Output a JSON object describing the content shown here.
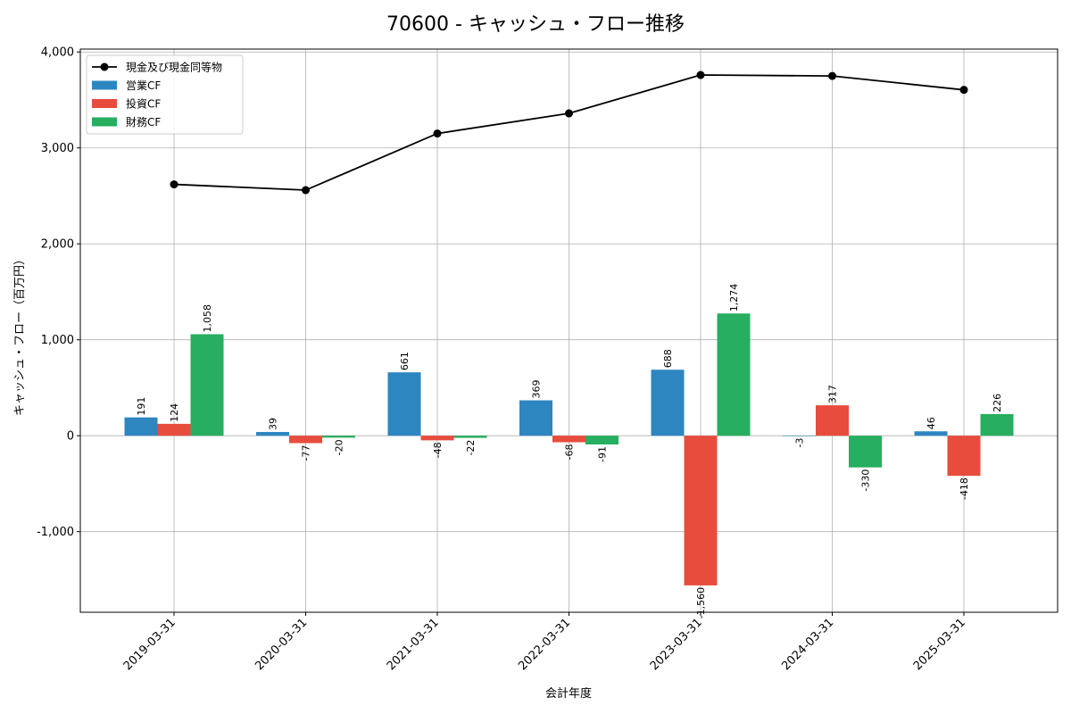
{
  "chart_data": {
    "type": "bar",
    "title": "70600 - キャッシュ・フロー推移",
    "xlabel": "会計年度",
    "ylabel": "キャッシュ・フロー（百万円）",
    "ylim": [
      -1840,
      4030
    ],
    "yticks": [
      -1000,
      0,
      1000,
      2000,
      3000,
      4000
    ],
    "ytick_labels": [
      "-1,000",
      "0",
      "1,000",
      "2,000",
      "3,000",
      "4,000"
    ],
    "grid": true,
    "legend_position": "top-left",
    "categories": [
      "2019-03-31",
      "2020-03-31",
      "2021-03-31",
      "2022-03-31",
      "2023-03-31",
      "2024-03-31",
      "2025-03-31"
    ],
    "series": [
      {
        "name": "営業CF",
        "kind": "bar",
        "color": "#2e86c1",
        "values": [
          191,
          39,
          661,
          369,
          688,
          -3,
          46
        ],
        "labels": [
          "191",
          "39",
          "661",
          "369",
          "688",
          "-3",
          "46"
        ]
      },
      {
        "name": "投資CF",
        "kind": "bar",
        "color": "#e74c3c",
        "values": [
          124,
          -77,
          -48,
          -68,
          -1560,
          317,
          -418
        ],
        "labels": [
          "124",
          "-77",
          "-48",
          "-68",
          "-1,560",
          "317",
          "-418"
        ]
      },
      {
        "name": "財務CF",
        "kind": "bar",
        "color": "#27ae60",
        "values": [
          1058,
          -20,
          -22,
          -91,
          1274,
          -330,
          226
        ],
        "labels": [
          "1,058",
          "-20",
          "-22",
          "-91",
          "1,274",
          "-330",
          "226"
        ]
      }
    ],
    "line_series": {
      "name": "現金及び現金同等物",
      "kind": "line",
      "color": "#000000",
      "values": [
        2620,
        2560,
        3150,
        3360,
        3760,
        3750,
        3605
      ]
    }
  }
}
